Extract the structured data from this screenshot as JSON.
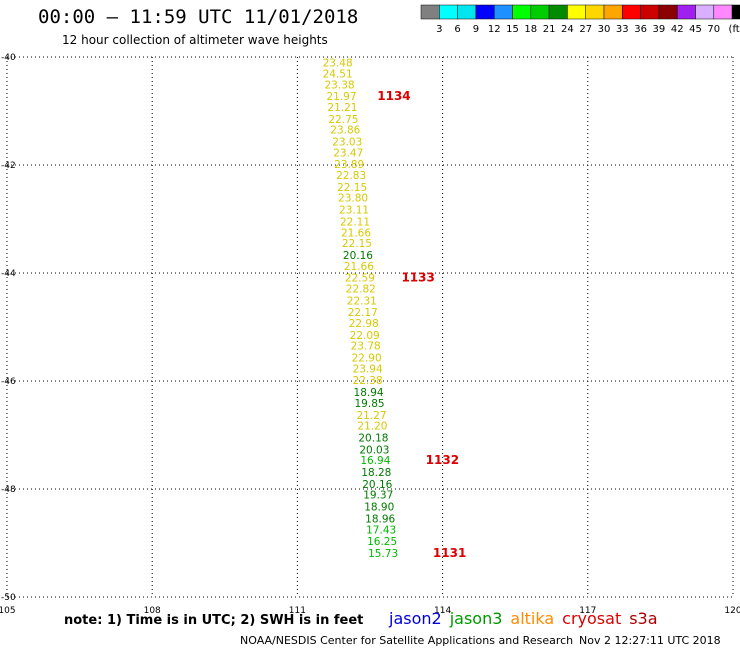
{
  "title": "00:00 – 11:59 UTC 11/01/2018",
  "subtitle": "12 hour collection of altimeter wave heights",
  "colorbar": {
    "unit": "(ft)",
    "colors": [
      "#808080",
      "#00ffff",
      "#00e5ee",
      "#0000ff",
      "#1e90ff",
      "#00ff00",
      "#00cd00",
      "#008b00",
      "#ffff00",
      "#ffd700",
      "#ffa500",
      "#ff0000",
      "#cd0000",
      "#8b0000",
      "#a020f0",
      "#d8b0ff",
      "#ff88ff",
      "#000000"
    ],
    "labels": [
      "3",
      "6",
      "9",
      "12",
      "15",
      "18",
      "21",
      "24",
      "27",
      "30",
      "33",
      "36",
      "39",
      "42",
      "45",
      "70"
    ]
  },
  "note": "note: 1) Time is in UTC; 2) SWH is in feet",
  "satellites": [
    {
      "name": "jason2",
      "color": "#0000dd"
    },
    {
      "name": "jason3",
      "color": "#009900"
    },
    {
      "name": "altika",
      "color": "#ff8c00"
    },
    {
      "name": "cryosat",
      "color": "#dd0000"
    },
    {
      "name": "s3a",
      "color": "#aa0000"
    }
  ],
  "footer_left": "NOAA/NESDIS Center for Satellite Applications and Research",
  "footer_right": "Nov  2 12:27:11 UTC 2018",
  "chart_data": {
    "type": "scatter",
    "xlim": [
      105,
      120
    ],
    "ylim": [
      -50,
      -40
    ],
    "xticks": [
      "105",
      "108",
      "111",
      "114",
      "117",
      "120"
    ],
    "yticks": [
      "-40",
      "-42",
      "-44",
      "-46",
      "-48",
      "-50"
    ],
    "grid": true,
    "points": [
      {
        "lon": 111.52,
        "lat": -40.18,
        "v": "23.48",
        "c": "#d8c800"
      },
      {
        "lon": 111.52,
        "lat": -40.38,
        "v": "24.51",
        "c": "#d8c800"
      },
      {
        "lon": 111.56,
        "lat": -40.58,
        "v": "23.38",
        "c": "#d8c800"
      },
      {
        "lon": 111.6,
        "lat": -40.8,
        "v": "21.97",
        "c": "#d8c800"
      },
      {
        "lon": 111.62,
        "lat": -41.0,
        "v": "21.21",
        "c": "#d8c800"
      },
      {
        "lon": 111.64,
        "lat": -41.22,
        "v": "22.75",
        "c": "#d8c800"
      },
      {
        "lon": 111.68,
        "lat": -41.42,
        "v": "23.86",
        "c": "#d8c800"
      },
      {
        "lon": 111.72,
        "lat": -41.64,
        "v": "23.03",
        "c": "#d8c800"
      },
      {
        "lon": 111.74,
        "lat": -41.84,
        "v": "23.47",
        "c": "#d8c800"
      },
      {
        "lon": 111.76,
        "lat": -42.06,
        "v": "23.89",
        "c": "#d8c800"
      },
      {
        "lon": 111.8,
        "lat": -42.26,
        "v": "22.83",
        "c": "#d8c800"
      },
      {
        "lon": 111.82,
        "lat": -42.48,
        "v": "22.15",
        "c": "#d8c800"
      },
      {
        "lon": 111.84,
        "lat": -42.68,
        "v": "23.80",
        "c": "#d8c800"
      },
      {
        "lon": 111.86,
        "lat": -42.9,
        "v": "23.11",
        "c": "#d8c800"
      },
      {
        "lon": 111.88,
        "lat": -43.12,
        "v": "22.11",
        "c": "#d8c800"
      },
      {
        "lon": 111.9,
        "lat": -43.32,
        "v": "21.66",
        "c": "#d8c800"
      },
      {
        "lon": 111.92,
        "lat": -43.52,
        "v": "22.15",
        "c": "#d8c800"
      },
      {
        "lon": 111.94,
        "lat": -43.74,
        "v": "20.16",
        "c": "#007a00"
      },
      {
        "lon": 111.96,
        "lat": -43.94,
        "v": "21.66",
        "c": "#d8c800"
      },
      {
        "lon": 111.98,
        "lat": -44.16,
        "v": "22.59",
        "c": "#d8c800"
      },
      {
        "lon": 112.0,
        "lat": -44.36,
        "v": "22.82",
        "c": "#d8c800"
      },
      {
        "lon": 112.02,
        "lat": -44.58,
        "v": "22.31",
        "c": "#d8c800"
      },
      {
        "lon": 112.04,
        "lat": -44.8,
        "v": "22.17",
        "c": "#d8c800"
      },
      {
        "lon": 112.06,
        "lat": -45.0,
        "v": "22.98",
        "c": "#d8c800"
      },
      {
        "lon": 112.08,
        "lat": -45.22,
        "v": "22.09",
        "c": "#d8c800"
      },
      {
        "lon": 112.1,
        "lat": -45.42,
        "v": "23.78",
        "c": "#d8c800"
      },
      {
        "lon": 112.12,
        "lat": -45.64,
        "v": "22.90",
        "c": "#d8c800"
      },
      {
        "lon": 112.14,
        "lat": -45.84,
        "v": "23.94",
        "c": "#d8c800"
      },
      {
        "lon": 112.14,
        "lat": -46.06,
        "v": "22.38",
        "c": "#d8c800"
      },
      {
        "lon": 112.16,
        "lat": -46.28,
        "v": "18.94",
        "c": "#007a00"
      },
      {
        "lon": 112.18,
        "lat": -46.48,
        "v": "19.85",
        "c": "#007a00"
      },
      {
        "lon": 112.22,
        "lat": -46.7,
        "v": "21.27",
        "c": "#d8c800"
      },
      {
        "lon": 112.24,
        "lat": -46.9,
        "v": "21.20",
        "c": "#d8c800"
      },
      {
        "lon": 112.26,
        "lat": -47.12,
        "v": "20.18",
        "c": "#007a00"
      },
      {
        "lon": 112.28,
        "lat": -47.34,
        "v": "20.03",
        "c": "#007a00"
      },
      {
        "lon": 112.3,
        "lat": -47.54,
        "v": "16.94",
        "c": "#00b800"
      },
      {
        "lon": 112.32,
        "lat": -47.76,
        "v": "18.28",
        "c": "#007a00"
      },
      {
        "lon": 112.34,
        "lat": -47.98,
        "v": "20.16",
        "c": "#007a00"
      },
      {
        "lon": 112.36,
        "lat": -48.18,
        "v": "19.37",
        "c": "#007a00"
      },
      {
        "lon": 112.38,
        "lat": -48.4,
        "v": "18.90",
        "c": "#007a00"
      },
      {
        "lon": 112.4,
        "lat": -48.62,
        "v": "18.96",
        "c": "#007a00"
      },
      {
        "lon": 112.42,
        "lat": -48.82,
        "v": "17.43",
        "c": "#00b800"
      },
      {
        "lon": 112.44,
        "lat": -49.04,
        "v": "16.25",
        "c": "#00b800"
      },
      {
        "lon": 112.46,
        "lat": -49.26,
        "v": "15.73",
        "c": "#00b800"
      }
    ],
    "time_labels": [
      {
        "lon": 112.65,
        "lat": -40.8,
        "text": "1134"
      },
      {
        "lon": 113.15,
        "lat": -44.16,
        "text": "1133"
      },
      {
        "lon": 113.65,
        "lat": -47.54,
        "text": "1132"
      },
      {
        "lon": 113.8,
        "lat": -49.26,
        "text": "1131"
      }
    ]
  }
}
